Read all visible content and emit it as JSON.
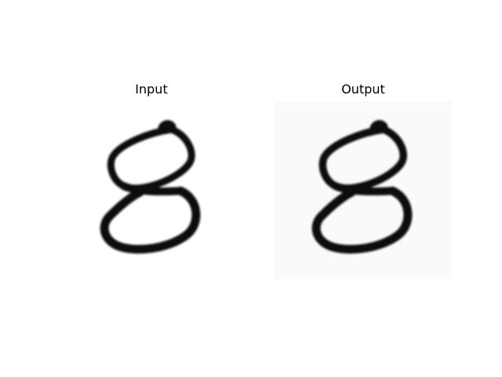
{
  "panels": [
    {
      "title": "Input",
      "image": "handwritten-digit-8-input",
      "background": "#ffffff"
    },
    {
      "title": "Output",
      "image": "handwritten-digit-8-output",
      "background": "#fafafa"
    }
  ],
  "colors": {
    "ink": "#111111",
    "text": "#000000"
  }
}
